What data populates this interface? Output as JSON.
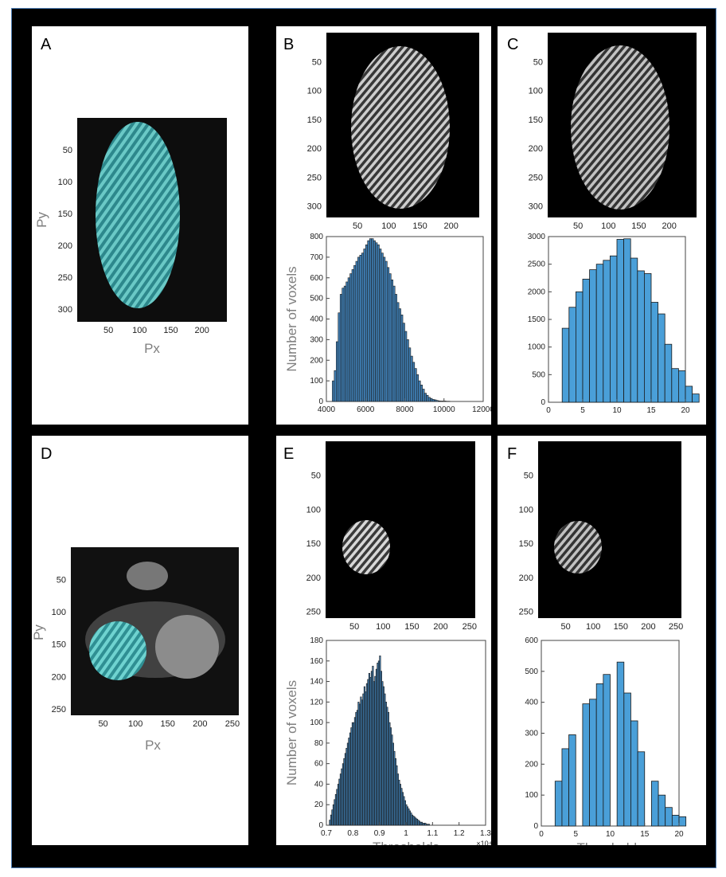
{
  "panels": {
    "A": {
      "label": "A",
      "axes": {
        "xlabel": "Px",
        "ylabel": "Py",
        "xticks": [
          "50",
          "100",
          "150",
          "200"
        ],
        "yticks": [
          "50",
          "100",
          "150",
          "200",
          "250",
          "300"
        ]
      }
    },
    "B": {
      "label": "B",
      "image_axes": {
        "xticks": [
          "50",
          "100",
          "150",
          "200"
        ],
        "yticks": [
          "50",
          "100",
          "150",
          "200",
          "250",
          "300"
        ]
      }
    },
    "C": {
      "label": "C",
      "image_axes": {
        "xticks": [
          "50",
          "100",
          "150",
          "200"
        ],
        "yticks": [
          "50",
          "100",
          "150",
          "200",
          "250",
          "300"
        ]
      }
    },
    "D": {
      "label": "D",
      "axes": {
        "xlabel": "Px",
        "ylabel": "Py",
        "xticks": [
          "50",
          "100",
          "150",
          "200",
          "250"
        ],
        "yticks": [
          "50",
          "100",
          "150",
          "200",
          "250"
        ]
      }
    },
    "E": {
      "label": "E",
      "image_axes": {
        "xticks": [
          "50",
          "100",
          "150",
          "200",
          "250"
        ],
        "yticks": [
          "50",
          "100",
          "150",
          "200",
          "250"
        ]
      }
    },
    "F": {
      "label": "F",
      "image_axes": {
        "xticks": [
          "50",
          "100",
          "150",
          "200",
          "250"
        ],
        "yticks": [
          "50",
          "100",
          "150",
          "200",
          "250"
        ]
      }
    }
  },
  "colors": {
    "teal": "#3fb3b4",
    "bar": "#3f7fb5",
    "bar_light": "#4a9fd8",
    "edge": "#1a1a1a"
  },
  "chart_data": [
    {
      "id": "B-hist",
      "type": "bar",
      "ylabel": "Number of voxels",
      "xlabel": "",
      "xlim": [
        4000,
        12000
      ],
      "ylim": [
        0,
        800
      ],
      "xticks": [
        "4000",
        "6000",
        "8000",
        "10000",
        "12000"
      ],
      "yticks": [
        "0",
        "100",
        "200",
        "300",
        "400",
        "500",
        "600",
        "700",
        "800"
      ],
      "bin_start": 4300,
      "bin_width": 100,
      "values": [
        100,
        150,
        290,
        430,
        520,
        550,
        560,
        580,
        600,
        620,
        640,
        660,
        680,
        700,
        710,
        720,
        740,
        760,
        780,
        790,
        790,
        780,
        770,
        760,
        740,
        720,
        700,
        680,
        650,
        620,
        590,
        560,
        520,
        480,
        450,
        420,
        380,
        340,
        300,
        260,
        220,
        190,
        160,
        130,
        100,
        80,
        60,
        40,
        30,
        20,
        15,
        10,
        8,
        5,
        3,
        2,
        2,
        2,
        1,
        1
      ]
    },
    {
      "id": "C-hist",
      "type": "bar",
      "ylabel": "",
      "xlabel": "",
      "xlim": [
        0,
        20
      ],
      "ylim": [
        0,
        3000
      ],
      "xticks": [
        "0",
        "5",
        "10",
        "15",
        "20"
      ],
      "yticks": [
        "0",
        "500",
        "1000",
        "1500",
        "2000",
        "2500",
        "3000"
      ],
      "bin_start": 2,
      "bin_width": 1,
      "values": [
        1340,
        1720,
        2000,
        2230,
        2400,
        2500,
        2570,
        2650,
        2950,
        2960,
        2610,
        2380,
        2330,
        1810,
        1600,
        1050,
        610,
        570,
        290,
        150
      ]
    },
    {
      "id": "E-hist",
      "type": "bar",
      "ylabel": "Number of voxels",
      "xlabel": "Thresholds",
      "xlim": [
        0.7,
        1.3
      ],
      "ylim": [
        0,
        180
      ],
      "xticks": [
        "0.7",
        "0.8",
        "0.9",
        "1",
        "1.1",
        "1.2",
        "1.3"
      ],
      "yticks": [
        "0",
        "20",
        "40",
        "60",
        "80",
        "100",
        "120",
        "140",
        "160",
        "180"
      ],
      "exponent_label": "×10⁴",
      "bin_start": 0.711,
      "bin_width": 0.0045,
      "values": [
        5,
        10,
        15,
        20,
        25,
        30,
        35,
        40,
        45,
        50,
        55,
        60,
        65,
        70,
        75,
        80,
        85,
        90,
        95,
        100,
        100,
        105,
        110,
        112,
        120,
        118,
        125,
        122,
        128,
        135,
        130,
        138,
        142,
        148,
        144,
        150,
        155,
        140,
        145,
        152,
        158,
        160,
        165,
        150,
        140,
        135,
        128,
        120,
        115,
        110,
        100,
        95,
        88,
        80,
        72,
        65,
        58,
        50,
        44,
        40,
        36,
        32,
        28,
        24,
        20,
        18,
        16,
        14,
        12,
        10,
        9,
        8,
        7,
        6,
        5,
        4,
        3,
        3,
        2,
        2,
        2,
        1,
        1,
        1
      ]
    },
    {
      "id": "F-hist",
      "type": "bar",
      "ylabel": "",
      "xlabel": "Thresholds",
      "xlim": [
        0,
        20
      ],
      "ylim": [
        0,
        600
      ],
      "xticks": [
        "0",
        "5",
        "10",
        "15",
        "20"
      ],
      "yticks": [
        "0",
        "100",
        "200",
        "300",
        "400",
        "500",
        "600"
      ],
      "bin_start": 2,
      "bin_width": 1,
      "values": [
        145,
        250,
        295,
        0,
        395,
        410,
        460,
        490,
        0,
        530,
        430,
        340,
        240,
        0,
        145,
        100,
        60,
        35,
        30
      ]
    }
  ]
}
